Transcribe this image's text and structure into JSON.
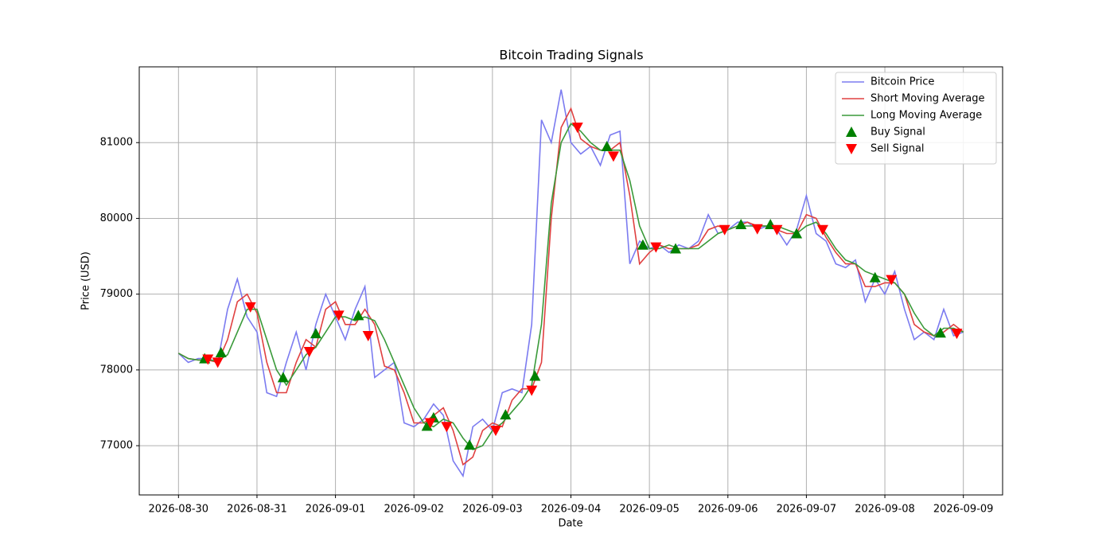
{
  "chart_data": {
    "type": "line",
    "title": "Bitcoin Trading Signals",
    "x_label": "Date",
    "y_label": "Price (USD)",
    "x": [
      "2026-08-30T00:00",
      "2026-08-30T03:00",
      "2026-08-30T06:00",
      "2026-08-30T09:00",
      "2026-08-30T12:00",
      "2026-08-30T15:00",
      "2026-08-30T18:00",
      "2026-08-30T21:00",
      "2026-08-31T00:00",
      "2026-08-31T03:00",
      "2026-08-31T06:00",
      "2026-08-31T09:00",
      "2026-08-31T12:00",
      "2026-08-31T15:00",
      "2026-08-31T18:00",
      "2026-08-31T21:00",
      "2026-09-01T00:00",
      "2026-09-01T03:00",
      "2026-09-01T06:00",
      "2026-09-01T09:00",
      "2026-09-01T12:00",
      "2026-09-01T15:00",
      "2026-09-01T18:00",
      "2026-09-01T21:00",
      "2026-09-02T00:00",
      "2026-09-02T03:00",
      "2026-09-02T06:00",
      "2026-09-02T09:00",
      "2026-09-02T12:00",
      "2026-09-02T15:00",
      "2026-09-02T18:00",
      "2026-09-02T21:00",
      "2026-09-03T00:00",
      "2026-09-03T03:00",
      "2026-09-03T06:00",
      "2026-09-03T09:00",
      "2026-09-03T12:00",
      "2026-09-03T15:00",
      "2026-09-03T18:00",
      "2026-09-03T21:00",
      "2026-09-04T00:00",
      "2026-09-04T03:00",
      "2026-09-04T06:00",
      "2026-09-04T09:00",
      "2026-09-04T12:00",
      "2026-09-04T15:00",
      "2026-09-04T18:00",
      "2026-09-04T21:00",
      "2026-09-05T00:00",
      "2026-09-05T03:00",
      "2026-09-05T06:00",
      "2026-09-05T09:00",
      "2026-09-05T12:00",
      "2026-09-05T15:00",
      "2026-09-05T18:00",
      "2026-09-05T21:00",
      "2026-09-06T00:00",
      "2026-09-06T03:00",
      "2026-09-06T06:00",
      "2026-09-06T09:00",
      "2026-09-06T12:00",
      "2026-09-06T15:00",
      "2026-09-06T18:00",
      "2026-09-06T21:00",
      "2026-09-07T00:00",
      "2026-09-07T03:00",
      "2026-09-07T06:00",
      "2026-09-07T09:00",
      "2026-09-07T12:00",
      "2026-09-07T15:00",
      "2026-09-07T18:00",
      "2026-09-07T21:00",
      "2026-09-08T00:00",
      "2026-09-08T03:00",
      "2026-09-08T06:00",
      "2026-09-08T09:00",
      "2026-09-08T12:00",
      "2026-09-08T15:00",
      "2026-09-08T18:00",
      "2026-09-08T21:00",
      "2026-09-09T00:00"
    ],
    "series": [
      {
        "name": "Bitcoin Price",
        "type": "line",
        "color": "#7b7bf0",
        "values": [
          78220,
          78100,
          78150,
          78150,
          78100,
          78800,
          79200,
          78700,
          78500,
          77700,
          77650,
          78100,
          78500,
          78000,
          78600,
          79000,
          78700,
          78400,
          78800,
          79100,
          77900,
          78000,
          78100,
          77300,
          77250,
          77350,
          77550,
          77400,
          76800,
          76600,
          77250,
          77350,
          77200,
          77700,
          77750,
          77700,
          78600,
          81300,
          81000,
          81700,
          81000,
          80850,
          80950,
          80700,
          81100,
          81150,
          79400,
          79700,
          79600,
          79650,
          79550,
          79650,
          79600,
          79700,
          80050,
          79800,
          79850,
          79950,
          79950,
          79850,
          79900,
          79850,
          79650,
          79850,
          80300,
          79800,
          79700,
          79400,
          79350,
          79450,
          78900,
          79200,
          79000,
          79300,
          78800,
          78400,
          78500,
          78400,
          78800,
          78450,
          78500
        ]
      },
      {
        "name": "Short Moving Average",
        "type": "line",
        "color": "#e04040",
        "values": [
          78220,
          78150,
          78130,
          78130,
          78100,
          78400,
          78900,
          79000,
          78750,
          78100,
          77700,
          77700,
          78100,
          78400,
          78300,
          78800,
          78900,
          78600,
          78600,
          78800,
          78600,
          78050,
          78000,
          77700,
          77300,
          77300,
          77400,
          77500,
          77200,
          76750,
          76850,
          77200,
          77300,
          77250,
          77600,
          77750,
          77750,
          78100,
          80000,
          81200,
          81450,
          81050,
          80950,
          80900,
          80900,
          81000,
          80300,
          79400,
          79550,
          79650,
          79600,
          79600,
          79600,
          79650,
          79850,
          79900,
          79850,
          79900,
          79950,
          79900,
          79900,
          79850,
          79800,
          79800,
          80050,
          80000,
          79750,
          79550,
          79400,
          79400,
          79100,
          79100,
          79150,
          79150,
          79000,
          78600,
          78500,
          78450,
          78500,
          78600,
          78500
        ]
      },
      {
        "name": "Long Moving Average",
        "type": "line",
        "color": "#3a9a3a",
        "values": [
          78220,
          78150,
          78130,
          78130,
          78120,
          78200,
          78500,
          78800,
          78800,
          78400,
          78000,
          77800,
          78000,
          78200,
          78300,
          78500,
          78700,
          78700,
          78650,
          78700,
          78650,
          78400,
          78100,
          77800,
          77500,
          77300,
          77250,
          77350,
          77300,
          77100,
          76950,
          77000,
          77200,
          77300,
          77450,
          77600,
          77800,
          78600,
          80200,
          81000,
          81250,
          81150,
          81000,
          80900,
          80900,
          80900,
          80500,
          79900,
          79600,
          79600,
          79650,
          79600,
          79600,
          79600,
          79700,
          79800,
          79850,
          79900,
          79900,
          79900,
          79900,
          79900,
          79850,
          79800,
          79900,
          79950,
          79800,
          79600,
          79450,
          79400,
          79300,
          79250,
          79200,
          79150,
          79000,
          78750,
          78550,
          78450,
          78550,
          78550,
          78500
        ]
      },
      {
        "name": "Buy Signal",
        "type": "scatter",
        "marker": "^",
        "color": "#008000",
        "x": [
          "2026-08-30T08:00",
          "2026-08-30T13:00",
          "2026-08-31T08:00",
          "2026-08-31T18:00",
          "2026-09-01T07:00",
          "2026-09-02T04:00",
          "2026-09-02T06:00",
          "2026-09-02T17:00",
          "2026-09-03T04:00",
          "2026-09-03T13:00",
          "2026-09-04T11:00",
          "2026-09-04T22:00",
          "2026-09-05T08:00",
          "2026-09-06T04:00",
          "2026-09-06T13:00",
          "2026-09-06T21:00",
          "2026-09-07T21:00",
          "2026-09-08T17:00"
        ],
        "values": [
          78150,
          78230,
          77900,
          78480,
          78720,
          77260,
          77370,
          77010,
          77410,
          77920,
          80950,
          79650,
          79600,
          79920,
          79920,
          79800,
          79220,
          78490
        ]
      },
      {
        "name": "Sell Signal",
        "type": "scatter",
        "marker": "v",
        "color": "#ff0000",
        "x": [
          "2026-08-30T09:00",
          "2026-08-30T12:00",
          "2026-08-30T22:00",
          "2026-08-31T16:00",
          "2026-09-01T01:00",
          "2026-09-01T10:00",
          "2026-09-02T05:00",
          "2026-09-02T10:00",
          "2026-09-03T01:00",
          "2026-09-03T12:00",
          "2026-09-04T02:00",
          "2026-09-04T13:00",
          "2026-09-05T02:00",
          "2026-09-05T23:00",
          "2026-09-06T09:00",
          "2026-09-06T15:00",
          "2026-09-07T05:00",
          "2026-09-08T02:00",
          "2026-09-08T22:00"
        ],
        "values": [
          78140,
          78100,
          78830,
          78240,
          78720,
          78450,
          77300,
          77250,
          77200,
          77730,
          81200,
          80820,
          79620,
          79850,
          79860,
          79850,
          79850,
          79190,
          78480
        ]
      }
    ],
    "xlim": [
      "2026-08-29T12:00",
      "2026-09-09T12:00"
    ],
    "xticks": [
      "2026-08-30",
      "2026-08-31",
      "2026-09-01",
      "2026-09-02",
      "2026-09-03",
      "2026-09-04",
      "2026-09-05",
      "2026-09-06",
      "2026-09-07",
      "2026-09-08",
      "2026-09-09"
    ],
    "ylim": [
      76350,
      82000
    ],
    "yticks": [
      77000,
      78000,
      79000,
      80000,
      81000
    ],
    "grid": true,
    "legend": "upper right"
  }
}
